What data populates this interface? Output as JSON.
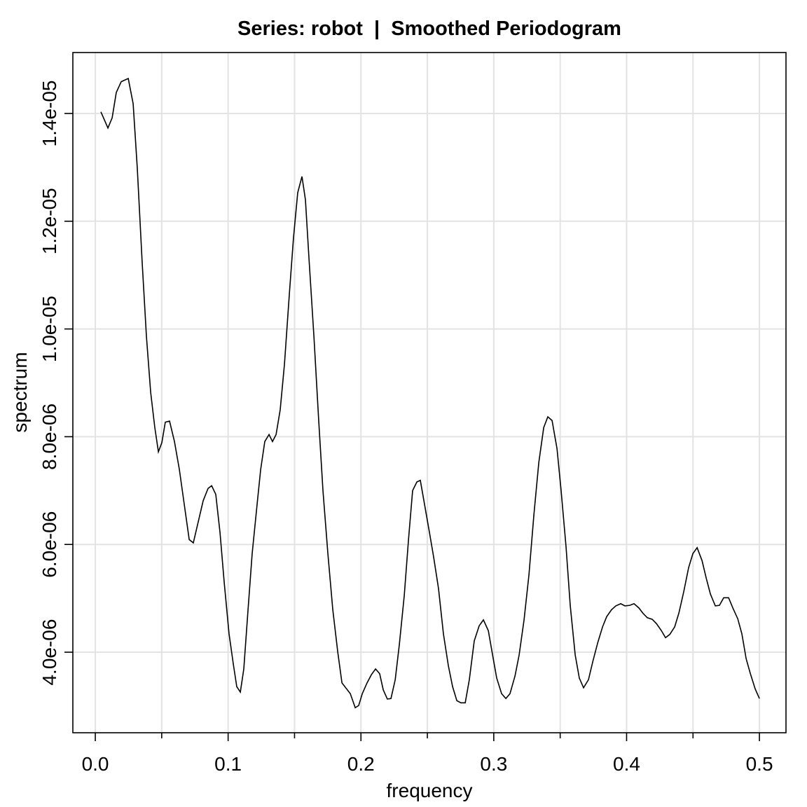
{
  "chart_data": {
    "type": "line",
    "title": "Series: robot  |  Smoothed Periodogram",
    "x_label": "frequency",
    "y_label": "spectrum",
    "color": "#000000",
    "grid": true,
    "xlim": [
      -0.0169,
      0.52
    ],
    "ylim": [
      2.505e-06,
      1.5131e-05
    ],
    "xticks": [
      {
        "value": 0,
        "label": "0.0"
      },
      0.1,
      0.2,
      0.3,
      0.4,
      0.5
    ],
    "x_minor_ticks": [
      0.05,
      0.15,
      0.25,
      0.35,
      0.45
    ],
    "yticks": [
      {
        "value": 4e-06,
        "label": "4.0e-06"
      },
      {
        "value": 6e-06,
        "label": "6.0e-06"
      },
      {
        "value": 8e-06,
        "label": "8.0e-06"
      },
      {
        "value": 1e-05,
        "label": "1.0e-05"
      },
      {
        "value": 1.2e-05,
        "label": "1.2e-05"
      },
      {
        "value": 1.4e-05,
        "label": "1.4e-05"
      }
    ],
    "x": [
      0.0042,
      0.0095,
      0.0127,
      0.0158,
      0.0195,
      0.0248,
      0.0285,
      0.0316,
      0.0353,
      0.0385,
      0.0417,
      0.0448,
      0.0475,
      0.0501,
      0.0527,
      0.0559,
      0.0596,
      0.0633,
      0.067,
      0.0707,
      0.0738,
      0.0775,
      0.0812,
      0.0849,
      0.0876,
      0.0907,
      0.0939,
      0.097,
      0.1007,
      0.1039,
      0.1065,
      0.1092,
      0.1118,
      0.115,
      0.1181,
      0.1218,
      0.1245,
      0.1276,
      0.1308,
      0.1334,
      0.1361,
      0.1392,
      0.1424,
      0.1461,
      0.1492,
      0.1524,
      0.1556,
      0.1582,
      0.1609,
      0.1646,
      0.1682,
      0.1714,
      0.1751,
      0.1788,
      0.1825,
      0.1857,
      0.192,
      0.1957,
      0.1983,
      0.201,
      0.2046,
      0.2078,
      0.211,
      0.2141,
      0.2168,
      0.2199,
      0.2226,
      0.2258,
      0.2289,
      0.2326,
      0.2358,
      0.2389,
      0.2421,
      0.2447,
      0.2479,
      0.2516,
      0.2547,
      0.2584,
      0.2621,
      0.2658,
      0.269,
      0.2722,
      0.2753,
      0.2785,
      0.2816,
      0.2853,
      0.289,
      0.2922,
      0.2959,
      0.2991,
      0.3022,
      0.3059,
      0.3091,
      0.3122,
      0.316,
      0.3191,
      0.3228,
      0.3265,
      0.3302,
      0.3339,
      0.3376,
      0.3407,
      0.3439,
      0.3476,
      0.3507,
      0.3544,
      0.3576,
      0.3613,
      0.3644,
      0.3676,
      0.3713,
      0.3745,
      0.3782,
      0.3819,
      0.385,
      0.3887,
      0.3919,
      0.3956,
      0.3987,
      0.4024,
      0.4056,
      0.4093,
      0.4124,
      0.4156,
      0.4193,
      0.4225,
      0.4262,
      0.4293,
      0.4325,
      0.4362,
      0.4394,
      0.443,
      0.4467,
      0.4499,
      0.4531,
      0.4568,
      0.4599,
      0.4631,
      0.4668,
      0.4699,
      0.4731,
      0.4768,
      0.48,
      0.4837,
      0.4868,
      0.49,
      0.4932,
      0.4968,
      0.5
    ],
    "values": [
      1.403e-05,
      1.373e-05,
      1.392e-05,
      1.439e-05,
      1.459e-05,
      1.465e-05,
      1.418e-05,
      1.299e-05,
      1.123e-05,
      9.86e-06,
      8.82e-06,
      8.17e-06,
      7.72e-06,
      7.89e-06,
      8.27e-06,
      8.29e-06,
      7.91e-06,
      7.39e-06,
      6.74e-06,
      6.09e-06,
      6.03e-06,
      6.42e-06,
      6.81e-06,
      7.04e-06,
      7.09e-06,
      6.93e-06,
      6.22e-06,
      5.31e-06,
      4.34e-06,
      3.78e-06,
      3.36e-06,
      3.26e-06,
      3.69e-06,
      4.79e-06,
      5.83e-06,
      6.74e-06,
      7.39e-06,
      7.91e-06,
      8.04e-06,
      7.91e-06,
      8.04e-06,
      8.5e-06,
      9.34e-06,
      1.065e-05,
      1.169e-05,
      1.253e-05,
      1.283e-05,
      1.24e-05,
      1.13e-05,
      9.86e-06,
      8.3e-06,
      7e-06,
      5.83e-06,
      4.79e-06,
      4.01e-06,
      3.43e-06,
      3.23e-06,
      2.97e-06,
      3.01e-06,
      3.23e-06,
      3.43e-06,
      3.58e-06,
      3.69e-06,
      3.6e-06,
      3.3e-06,
      3.13e-06,
      3.14e-06,
      3.49e-06,
      4.14e-06,
      5.05e-06,
      6.09e-06,
      7e-06,
      7.16e-06,
      7.19e-06,
      6.74e-06,
      6.22e-06,
      5.77e-06,
      5.18e-06,
      4.34e-06,
      3.75e-06,
      3.36e-06,
      3.1e-06,
      3.06e-06,
      3.06e-06,
      3.49e-06,
      4.21e-06,
      4.49e-06,
      4.6e-06,
      4.4e-06,
      3.95e-06,
      3.52e-06,
      3.23e-06,
      3.14e-06,
      3.23e-06,
      3.56e-06,
      3.95e-06,
      4.6e-06,
      5.44e-06,
      6.55e-06,
      7.52e-06,
      8.17e-06,
      8.37e-06,
      8.3e-06,
      7.78e-06,
      7e-06,
      5.96e-06,
      4.86e-06,
      3.95e-06,
      3.52e-06,
      3.34e-06,
      3.49e-06,
      3.82e-06,
      4.17e-06,
      4.47e-06,
      4.66e-06,
      4.79e-06,
      4.86e-06,
      4.9e-06,
      4.86e-06,
      4.87e-06,
      4.9e-06,
      4.82e-06,
      4.72e-06,
      4.64e-06,
      4.61e-06,
      4.53e-06,
      4.4e-06,
      4.27e-06,
      4.33e-06,
      4.47e-06,
      4.73e-06,
      5.12e-06,
      5.57e-06,
      5.83e-06,
      5.94e-06,
      5.7e-06,
      5.38e-06,
      5.08e-06,
      4.86e-06,
      4.87e-06,
      5.01e-06,
      5.01e-06,
      4.82e-06,
      4.62e-06,
      4.34e-06,
      3.88e-06,
      3.6e-06,
      3.32e-06,
      3.14e-06
    ]
  }
}
